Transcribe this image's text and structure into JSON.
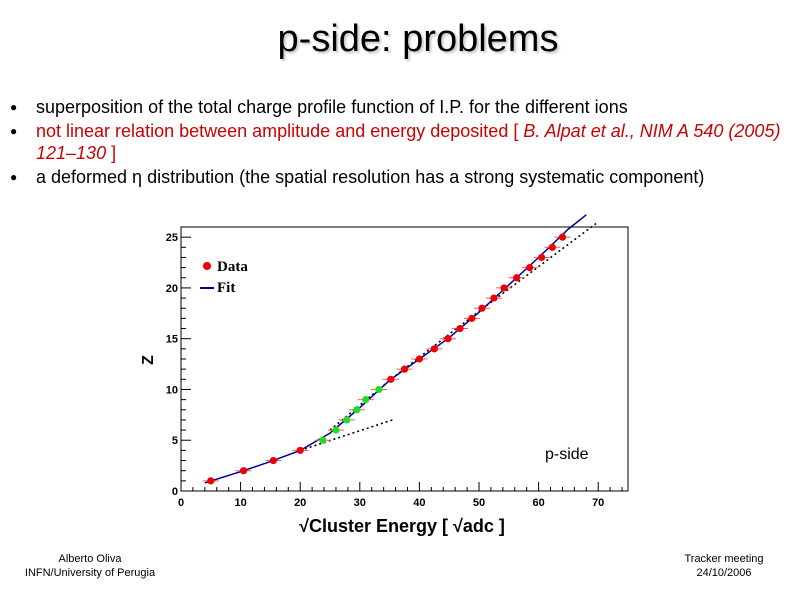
{
  "slide": {
    "title": "p-side: problems",
    "bullets": [
      "superposition of the total charge profile function of I.P. for the different ions",
      "not linear relation between amplitude and energy deposited [ ",
      "a deformed η distribution (the spatial resolution has a strong systematic component)"
    ],
    "citation": "B. Alpat et al., NIM A 540 (2005) 121–130",
    "citation_close": " ]",
    "footer_left": [
      "Alberto Oliva",
      "INFN/University of Perugia"
    ],
    "footer_right": [
      "Tracker meeting",
      "24/10/2006"
    ]
  },
  "chart_data": {
    "type": "scatter",
    "xlabel": "√Cluster Energy  [ √adc ]",
    "ylabel": "Z",
    "annotation": "p-side",
    "xlim": [
      0,
      75
    ],
    "ylim": [
      0,
      26
    ],
    "xticks": [
      0,
      10,
      20,
      30,
      40,
      50,
      60,
      70
    ],
    "yticks": [
      0,
      5,
      10,
      15,
      20,
      25
    ],
    "legend": {
      "position": "top-left",
      "entries": [
        {
          "label": "Data"
        },
        {
          "label": "Fit"
        }
      ]
    },
    "colors": {
      "data": "#ee0000",
      "highlight": "#22dd22",
      "fit": "#000099",
      "errbar": "#ff5555"
    },
    "series": [
      {
        "name": "Data",
        "points": [
          {
            "x": 5.0,
            "y": 1
          },
          {
            "x": 10.5,
            "y": 2
          },
          {
            "x": 15.5,
            "y": 3
          },
          {
            "x": 20.0,
            "y": 4
          },
          {
            "x": 35.2,
            "y": 11
          },
          {
            "x": 37.5,
            "y": 12
          },
          {
            "x": 40.0,
            "y": 13
          },
          {
            "x": 42.5,
            "y": 14
          },
          {
            "x": 44.8,
            "y": 15
          },
          {
            "x": 46.8,
            "y": 16
          },
          {
            "x": 48.8,
            "y": 17
          },
          {
            "x": 50.5,
            "y": 18
          },
          {
            "x": 52.5,
            "y": 19
          },
          {
            "x": 54.2,
            "y": 20
          },
          {
            "x": 56.3,
            "y": 21
          },
          {
            "x": 58.5,
            "y": 22
          },
          {
            "x": 60.5,
            "y": 23
          },
          {
            "x": 62.3,
            "y": 24
          },
          {
            "x": 64.0,
            "y": 25
          }
        ]
      },
      {
        "points": [
          {
            "x": 23.8,
            "y": 5
          },
          {
            "x": 26.0,
            "y": 6
          },
          {
            "x": 27.8,
            "y": 7
          },
          {
            "x": 29.5,
            "y": 8
          },
          {
            "x": 31.0,
            "y": 9
          },
          {
            "x": 33.2,
            "y": 10
          }
        ]
      }
    ],
    "fit_curve": [
      {
        "x": 4,
        "y": 0.8
      },
      {
        "x": 10,
        "y": 1.9
      },
      {
        "x": 15,
        "y": 2.9
      },
      {
        "x": 20,
        "y": 4.0
      },
      {
        "x": 25,
        "y": 5.7
      },
      {
        "x": 30,
        "y": 8.2
      },
      {
        "x": 35,
        "y": 10.9
      },
      {
        "x": 40,
        "y": 13.0
      },
      {
        "x": 45,
        "y": 15.1
      },
      {
        "x": 50,
        "y": 17.6
      },
      {
        "x": 55,
        "y": 20.3
      },
      {
        "x": 60,
        "y": 23.0
      },
      {
        "x": 65,
        "y": 25.8
      },
      {
        "x": 68,
        "y": 27.2
      }
    ],
    "dashed_lines": [
      [
        {
          "x": 20,
          "y": 4.0
        },
        {
          "x": 35.5,
          "y": 7.0
        }
      ],
      [
        {
          "x": 25,
          "y": 6.0
        },
        {
          "x": 35.2,
          "y": 11.0
        },
        {
          "x": 50,
          "y": 17.7
        },
        {
          "x": 70,
          "y": 26.5
        }
      ]
    ]
  }
}
